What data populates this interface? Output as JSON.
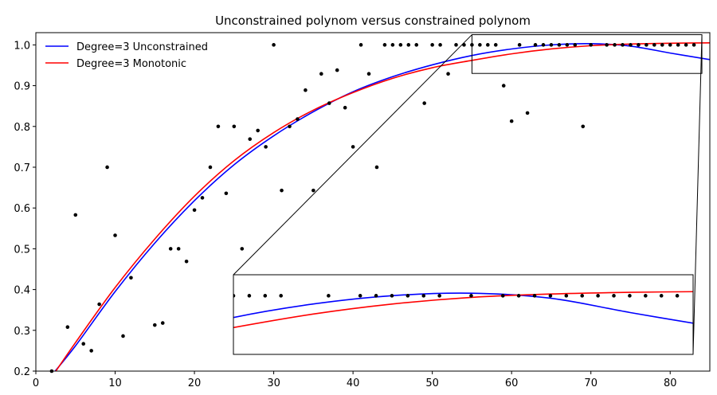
{
  "chart_data": {
    "type": "scatter",
    "title": "Unconstrained polynom versus constrained polynom",
    "xlabel": "",
    "ylabel": "",
    "xlim": [
      0,
      85
    ],
    "ylim": [
      0.2,
      1.03
    ],
    "xticks": [
      0,
      10,
      20,
      30,
      40,
      50,
      60,
      70,
      80
    ],
    "yticks": [
      0.2,
      0.3,
      0.4,
      0.5,
      0.6,
      0.7,
      0.8,
      0.9,
      1.0
    ],
    "grid": false,
    "legend_position": "top-left",
    "points": {
      "color": "#000000",
      "x": [
        2,
        4,
        5,
        6,
        7,
        8,
        9,
        10,
        11,
        12,
        15,
        16,
        17,
        18,
        19,
        20,
        21,
        22,
        23,
        24,
        25,
        26,
        27,
        28,
        29,
        30,
        31,
        32,
        33,
        34,
        35,
        36,
        37,
        38,
        39,
        40,
        41,
        42,
        43,
        44,
        45,
        46,
        47,
        48,
        49,
        50,
        51,
        52,
        53,
        54,
        55,
        56,
        57,
        58,
        59,
        60,
        61,
        62,
        63,
        64,
        65,
        66,
        67,
        68,
        69,
        70,
        72,
        73,
        74,
        75,
        76,
        77,
        78,
        79,
        80,
        81,
        82,
        83
      ],
      "y": [
        0.2,
        0.308,
        0.583,
        0.267,
        0.25,
        0.364,
        0.7,
        0.533,
        0.286,
        0.429,
        0.313,
        0.318,
        0.5,
        0.5,
        0.469,
        0.595,
        0.625,
        0.7,
        0.8,
        0.636,
        0.8,
        0.5,
        0.769,
        0.79,
        0.75,
        1.0,
        0.643,
        0.8,
        0.818,
        0.889,
        0.643,
        0.929,
        0.857,
        0.938,
        0.846,
        0.75,
        1.0,
        0.929,
        0.7,
        1.0,
        1.0,
        1.0,
        1.0,
        1.0,
        0.857,
        1.0,
        1.0,
        0.929,
        1.0,
        1.0,
        1.0,
        1.0,
        1.0,
        1.0,
        0.9,
        0.813,
        1.0,
        0.833,
        1.0,
        1.0,
        1.0,
        1.0,
        1.0,
        1.0,
        0.8,
        1.0,
        1.0,
        1.0,
        1.0,
        1.0,
        1.0,
        1.0,
        1.0,
        1.0,
        1.0,
        1.0,
        1.0,
        1.0
      ]
    },
    "series": [
      {
        "name": "Degree=3 Unconstrained",
        "color": "#0000ff",
        "x": [
          2,
          5,
          10,
          15,
          20,
          25,
          30,
          35,
          40,
          45,
          50,
          55,
          60,
          65,
          70,
          75,
          80,
          85
        ],
        "y": [
          0.19,
          0.262,
          0.395,
          0.514,
          0.618,
          0.706,
          0.777,
          0.836,
          0.885,
          0.922,
          0.951,
          0.974,
          0.99,
          1.0,
          1.003,
          0.997,
          0.98,
          0.964
        ]
      },
      {
        "name": "Degree=3 Monotonic",
        "color": "#ff0000",
        "x": [
          2,
          5,
          10,
          15,
          20,
          25,
          30,
          35,
          40,
          45,
          50,
          55,
          60,
          65,
          70,
          75,
          80,
          85
        ],
        "y": [
          0.185,
          0.27,
          0.405,
          0.524,
          0.629,
          0.716,
          0.785,
          0.84,
          0.883,
          0.918,
          0.944,
          0.962,
          0.978,
          0.99,
          0.998,
          1.002,
          1.004,
          1.005
        ]
      }
    ],
    "inset": {
      "xlim": [
        55,
        84
      ],
      "ylim": [
        0.93,
        1.025
      ],
      "connector_color": "#000000"
    }
  }
}
